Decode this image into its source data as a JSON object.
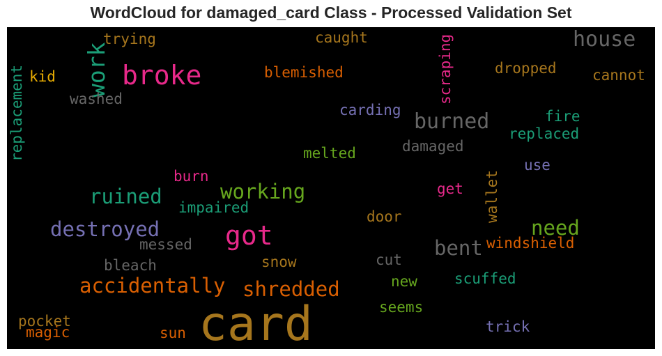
{
  "chart_data": {
    "type": "wordcloud",
    "title": "WordCloud for damaged_card Class - Processed Validation Set",
    "background": "#000000",
    "palette": [
      "#1b9e77",
      "#d95f02",
      "#7570b3",
      "#e7298a",
      "#66a61e",
      "#e6ab02",
      "#a6761d",
      "#666666"
    ],
    "words": [
      {
        "text": "card",
        "color": "#a6761d",
        "weight": 1.0
      },
      {
        "text": "broke",
        "color": "#e7298a",
        "weight": 0.62
      },
      {
        "text": "got",
        "color": "#e7298a",
        "weight": 0.62
      },
      {
        "text": "work",
        "color": "#1b9e77",
        "weight": 0.56
      },
      {
        "text": "house",
        "color": "#666666",
        "weight": 0.52
      },
      {
        "text": "burned",
        "color": "#666666",
        "weight": 0.52
      },
      {
        "text": "destroyed",
        "color": "#7570b3",
        "weight": 0.5
      },
      {
        "text": "ruined",
        "color": "#1b9e77",
        "weight": 0.5
      },
      {
        "text": "working",
        "color": "#66a61e",
        "weight": 0.5
      },
      {
        "text": "accidentally",
        "color": "#d95f02",
        "weight": 0.5
      },
      {
        "text": "shredded",
        "color": "#d95f02",
        "weight": 0.5
      },
      {
        "text": "need",
        "color": "#66a61e",
        "weight": 0.5
      },
      {
        "text": "bent",
        "color": "#666666",
        "weight": 0.5
      },
      {
        "text": "blemished",
        "color": "#d95f02",
        "weight": 0.34
      },
      {
        "text": "trying",
        "color": "#a6761d",
        "weight": 0.34
      },
      {
        "text": "caught",
        "color": "#a6761d",
        "weight": 0.34
      },
      {
        "text": "scraping",
        "color": "#e7298a",
        "weight": 0.34
      },
      {
        "text": "dropped",
        "color": "#a6761d",
        "weight": 0.34
      },
      {
        "text": "cannot",
        "color": "#a6761d",
        "weight": 0.34
      },
      {
        "text": "kid",
        "color": "#e6ab02",
        "weight": 0.34
      },
      {
        "text": "replacement",
        "color": "#1b9e77",
        "weight": 0.34
      },
      {
        "text": "washed",
        "color": "#666666",
        "weight": 0.34
      },
      {
        "text": "carding",
        "color": "#7570b3",
        "weight": 0.34
      },
      {
        "text": "fire",
        "color": "#1b9e77",
        "weight": 0.34
      },
      {
        "text": "replaced",
        "color": "#1b9e77",
        "weight": 0.34
      },
      {
        "text": "damaged",
        "color": "#666666",
        "weight": 0.34
      },
      {
        "text": "melted",
        "color": "#66a61e",
        "weight": 0.34
      },
      {
        "text": "use",
        "color": "#7570b3",
        "weight": 0.34
      },
      {
        "text": "burn",
        "color": "#e7298a",
        "weight": 0.34
      },
      {
        "text": "wallet",
        "color": "#a6761d",
        "weight": 0.34
      },
      {
        "text": "get",
        "color": "#e7298a",
        "weight": 0.34
      },
      {
        "text": "impaired",
        "color": "#1b9e77",
        "weight": 0.34
      },
      {
        "text": "door",
        "color": "#a6761d",
        "weight": 0.34
      },
      {
        "text": "messed",
        "color": "#666666",
        "weight": 0.34
      },
      {
        "text": "windshield",
        "color": "#d95f02",
        "weight": 0.34
      },
      {
        "text": "bleach",
        "color": "#666666",
        "weight": 0.34
      },
      {
        "text": "snow",
        "color": "#a6761d",
        "weight": 0.34
      },
      {
        "text": "cut",
        "color": "#666666",
        "weight": 0.34
      },
      {
        "text": "new",
        "color": "#66a61e",
        "weight": 0.34
      },
      {
        "text": "scuffed",
        "color": "#1b9e77",
        "weight": 0.34
      },
      {
        "text": "seems",
        "color": "#66a61e",
        "weight": 0.34
      },
      {
        "text": "pocket",
        "color": "#a6761d",
        "weight": 0.34
      },
      {
        "text": "magic",
        "color": "#d95f02",
        "weight": 0.34
      },
      {
        "text": "sun",
        "color": "#d95f02",
        "weight": 0.34
      },
      {
        "text": "trick",
        "color": "#7570b3",
        "weight": 0.34
      }
    ]
  }
}
